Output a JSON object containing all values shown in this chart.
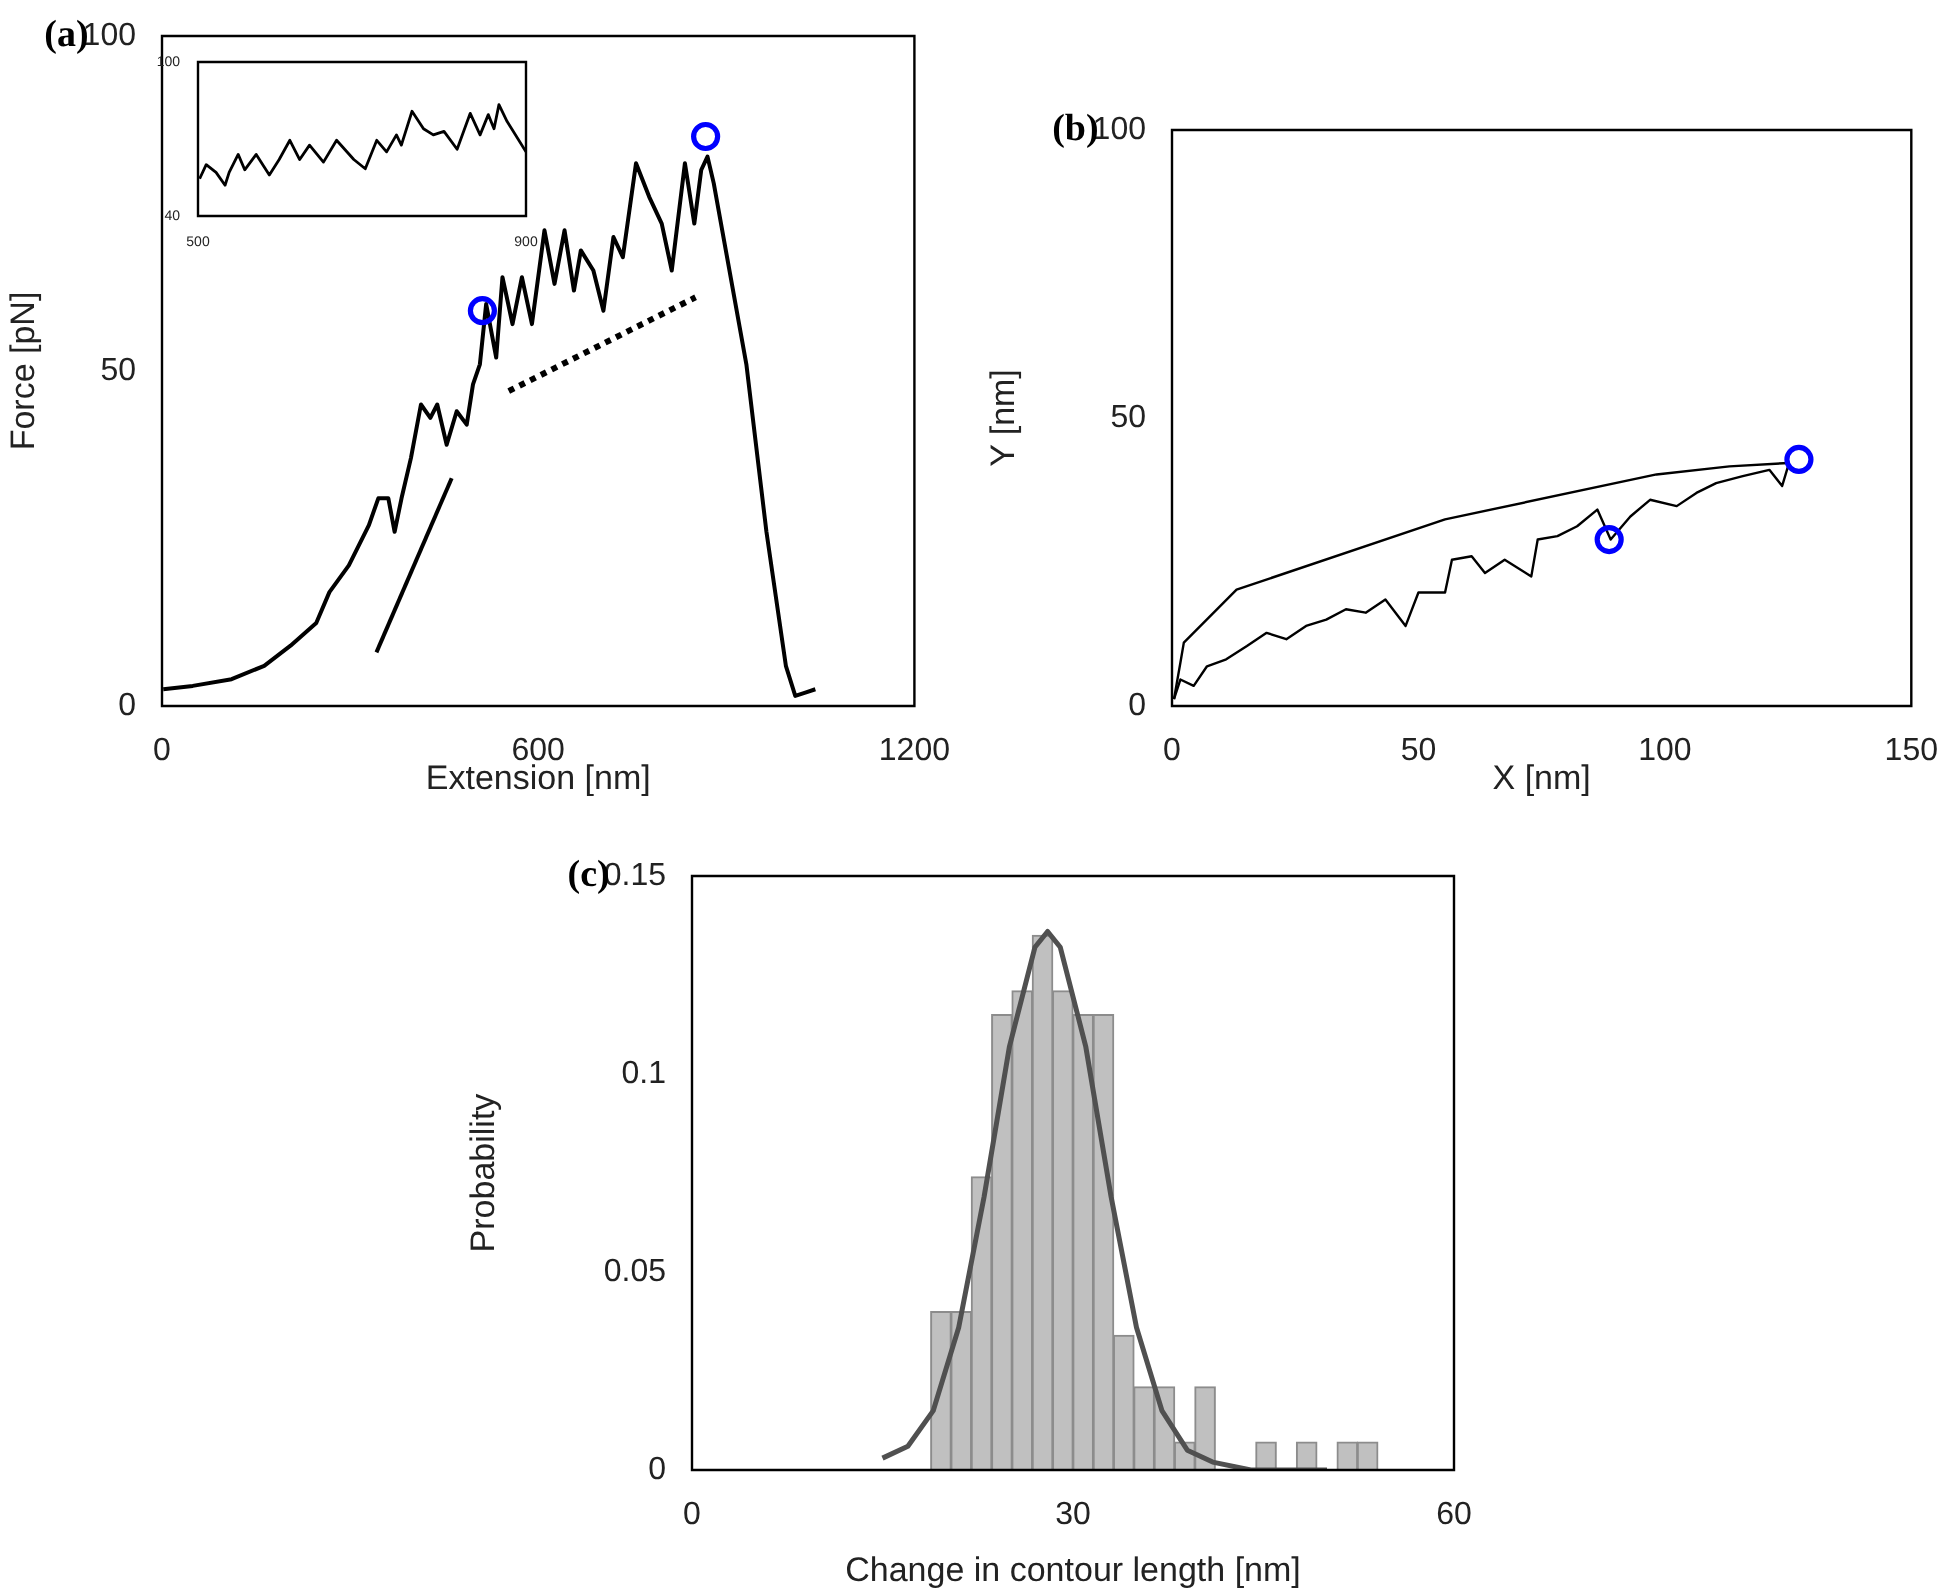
{
  "chart_data": [
    {
      "type": "line",
      "title": "(a)",
      "xlabel": "Extension [nm]",
      "ylabel": "Force [pN]",
      "xlim": [
        0,
        1200
      ],
      "xticks": [
        0,
        600,
        1200
      ],
      "ylim": [
        0,
        100
      ],
      "yticks": [
        0,
        50,
        100
      ],
      "marker": "none",
      "series": [
        {
          "color": "#000000",
          "x": [
            2,
            49,
            111,
            163,
            205,
            246,
            267,
            298,
            330,
            345,
            361,
            371,
            382,
            397,
            413,
            428,
            439,
            454,
            470,
            486,
            496,
            507,
            517,
            533,
            543,
            559,
            574,
            590,
            610,
            626,
            642,
            657,
            668,
            688,
            704,
            720,
            735,
            756,
            777,
            797,
            813,
            834,
            849,
            860,
            870,
            880,
            932,
            964,
            995,
            1010,
            1026,
            1042
          ],
          "values": [
            2.5,
            3,
            4,
            6,
            9,
            12.4,
            17,
            21,
            27,
            31,
            31,
            26,
            31,
            37,
            45,
            43,
            45,
            39,
            44,
            42,
            48,
            51,
            60,
            52,
            64,
            57,
            64,
            57,
            71,
            63,
            71,
            62,
            68,
            65,
            59,
            70,
            67,
            81,
            76,
            72,
            65,
            81,
            72,
            80,
            82,
            78,
            51,
            26,
            6,
            1.5,
            2,
            2.5
          ]
        },
        {
          "type": "line",
          "color": "#000000",
          "x": [
            342,
            462
          ],
          "values": [
            8,
            34
          ]
        },
        {
          "type": "line",
          "color": "#000000",
          "line_style": "dotted",
          "x": [
            553,
            851
          ],
          "values": [
            47,
            61
          ]
        },
        {
          "type": "scatter",
          "color": "#0000ff",
          "marker": "circle",
          "x": [
            511,
            867
          ],
          "values": [
            59,
            85
          ]
        }
      ]
    },
    {
      "type": "line",
      "xlim": [
        500,
        900
      ],
      "xticks": [
        500,
        900
      ],
      "ylim": [
        40,
        100
      ],
      "yticks": [
        40,
        100
      ],
      "marker": "none",
      "series": [
        {
          "color": "#000000",
          "x": [
            502,
            510,
            522,
            533,
            538,
            549,
            557,
            571,
            587,
            599,
            612,
            624,
            636,
            653,
            669,
            690,
            704,
            718,
            730,
            742,
            748,
            761,
            775,
            787,
            800,
            816,
            832,
            844,
            854,
            861,
            867,
            877,
            900
          ],
          "values": [
            54.5,
            60,
            57,
            52,
            57,
            64,
            58,
            64,
            56,
            62,
            69.5,
            62,
            67.6,
            61,
            69.5,
            62,
            58.4,
            69.5,
            65,
            71.6,
            67.6,
            80.8,
            74,
            71.6,
            73,
            66,
            80,
            71.6,
            79.5,
            74,
            83.4,
            76.8,
            65
          ]
        }
      ]
    },
    {
      "type": "line",
      "title": "(b)",
      "xlabel": "X [nm]",
      "ylabel": "Y [nm]",
      "xlim": [
        0,
        150
      ],
      "xticks": [
        0,
        50,
        100,
        150
      ],
      "ylim": [
        0,
        100
      ],
      "yticks": [
        0,
        50,
        100
      ],
      "marker": "none",
      "series": [
        {
          "color": "#000000",
          "x": [
            0.4,
            1.7,
            4.4,
            7.1,
            11,
            15.2,
            19.2,
            23.2,
            27.2,
            31.3,
            35.3,
            39.3,
            43.3,
            47.4,
            50,
            55.4,
            56.8,
            60.8,
            63.5,
            67.5,
            72.9,
            74.2,
            78.2,
            82.2,
            86.3,
            89,
            93,
            97,
            102.4,
            106.4,
            110.4,
            115.8,
            121.2,
            123.8,
            125.2
          ],
          "values": [
            1.2,
            4.6,
            3.5,
            6.9,
            8.1,
            10.4,
            12.7,
            11.6,
            13.9,
            15,
            16.8,
            16.2,
            18.5,
            13.9,
            19.7,
            19.7,
            25.4,
            26,
            23.1,
            25.4,
            22.5,
            28.9,
            29.5,
            31.2,
            34.1,
            28.9,
            32.9,
            35.8,
            34.7,
            37,
            38.7,
            39.9,
            41,
            38.2,
            42.2
          ]
        },
        {
          "color": "#000000",
          "x": [
            0.4,
            1.7,
            2.4,
            13.1,
            55.4,
            98.3,
            113.1,
            125.2
          ],
          "values": [
            1.2,
            7.5,
            11,
            20.2,
            32.4,
            40.2,
            41.6,
            42.2
          ]
        },
        {
          "type": "scatter",
          "color": "#0000ff",
          "marker": "circle",
          "x": [
            88.7,
            127.2
          ],
          "values": [
            28.9,
            42.8
          ]
        }
      ]
    },
    {
      "type": "histogram",
      "title": "(c)",
      "xlabel": "Change in contour length [nm]",
      "ylabel": "Probability",
      "xlim": [
        0,
        60
      ],
      "xticks": [
        0,
        30,
        60
      ],
      "ylim": [
        0,
        0.15
      ],
      "yticks": [
        0,
        0.05,
        0.1,
        0.15
      ],
      "marker": "none",
      "series": [
        {
          "color": "#c0c0c0",
          "bins": [
            18.8,
            20.4,
            22,
            23.6,
            25.2,
            26.8,
            28.4,
            30,
            31.6,
            33.2,
            34.8,
            36.4,
            38,
            39.6,
            41.2,
            42.8,
            44.4,
            46,
            47.6,
            49.2,
            50.8,
            52.4,
            54
          ],
          "values": [
            0.04,
            0.04,
            0.074,
            0.115,
            0.121,
            0.135,
            0.121,
            0.115,
            0.115,
            0.034,
            0.021,
            0.021,
            0.007,
            0.021,
            0,
            0,
            0.007,
            0,
            0.007,
            0,
            0.007,
            0.007
          ]
        },
        {
          "type": "line",
          "color": "#505050",
          "x": [
            15,
            17,
            19,
            21,
            23,
            25,
            27,
            28,
            29,
            31,
            33,
            35,
            37,
            39,
            41,
            44,
            47,
            50
          ],
          "values": [
            0.003,
            0.006,
            0.015,
            0.036,
            0.069,
            0.107,
            0.132,
            0.136,
            0.132,
            0.107,
            0.069,
            0.036,
            0.015,
            0.005,
            0.002,
            0,
            0,
            0
          ]
        }
      ]
    }
  ]
}
